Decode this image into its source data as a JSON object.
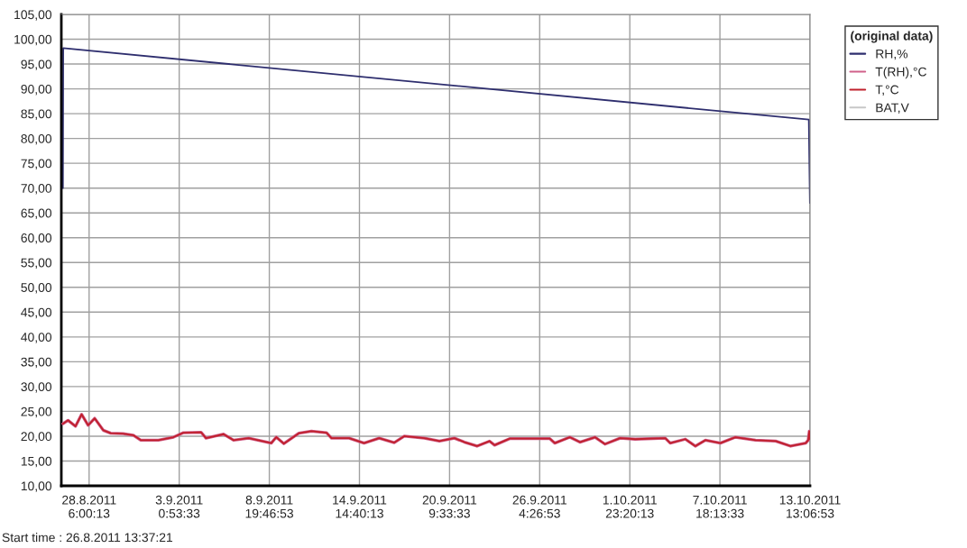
{
  "chart_data": {
    "type": "line",
    "legend_title": "(original data)",
    "x": [
      "2011-08-26T13:37",
      "2011-08-26T21:32",
      "2011-08-27T09:03",
      "2011-08-27T18:25",
      "2011-08-28T04:30",
      "2011-08-28T14:35",
      "2011-08-29T03:47",
      "2011-08-29T15:18",
      "2011-08-30T10:30",
      "2011-08-31T02:06",
      "2011-08-31T13:37",
      "2011-09-01T16:44",
      "2011-09-02T16:01",
      "2011-09-03T07:23",
      "2011-09-04T10:30",
      "2011-09-04T18:11",
      "2011-09-05T21:18",
      "2011-09-06T12:39",
      "2011-09-07T11:56",
      "2011-09-08T22:44",
      "2011-09-09T06:25",
      "2011-09-09T18:11",
      "2011-09-10T17:13",
      "2011-09-11T12:39",
      "2011-09-12T11:56",
      "2011-09-12T19:37",
      "2011-09-13T22:44",
      "2011-09-14T21:47",
      "2011-09-15T21:03",
      "2011-09-16T20:20",
      "2011-09-17T11:42",
      "2011-09-18T18:39",
      "2011-09-19T17:56",
      "2011-09-20T16:59",
      "2011-09-21T08:35",
      "2011-09-22T03:47",
      "2011-09-22T23:13",
      "2011-09-23T06:54",
      "2011-09-24T06:11",
      "2011-09-26T20:06",
      "2011-09-27T03:47",
      "2011-09-28T02:49",
      "2011-09-28T18:25",
      "2011-09-29T17:42",
      "2011-09-30T09:03",
      "2011-10-01T08:20",
      "2011-10-02T07:37",
      "2011-10-04T05:56",
      "2011-10-04T13:37",
      "2011-10-05T12:54",
      "2011-10-06T04:15",
      "2011-10-06T19:51",
      "2011-10-07T18:54",
      "2011-10-08T18:11",
      "2011-10-10T01:08",
      "2011-10-11T08:06",
      "2011-10-12T07:08",
      "2011-10-13T06:25",
      "2011-10-13T10:15",
      "2011-10-13T11:56",
      "2011-10-13T12:54"
    ],
    "series": [
      {
        "name": "RH,%",
        "color": "#2e2e6e",
        "x": [
          "2011-08-26T13:37",
          "2011-08-26T14:06",
          "2011-10-13T11:13",
          "2011-10-13T12:54"
        ],
        "values": [
          70,
          98.2,
          83.8,
          67
        ]
      },
      {
        "name": "T(RH),°C",
        "color": "#d0608a",
        "values": [
          22.5,
          23.2,
          22.0,
          24.4,
          22.2,
          23.6,
          21.2,
          20.6,
          20.5,
          20.2,
          19.2,
          19.2,
          19.8,
          20.7,
          20.8,
          19.6,
          20.4,
          19.2,
          19.6,
          18.6,
          19.8,
          18.5,
          20.6,
          21.0,
          20.7,
          19.6,
          19.6,
          18.6,
          19.6,
          18.7,
          20.0,
          19.6,
          19.0,
          19.6,
          18.8,
          18.0,
          19.0,
          18.2,
          19.5,
          19.5,
          18.6,
          19.8,
          18.8,
          19.8,
          18.4,
          19.6,
          19.4,
          19.6,
          18.6,
          19.4,
          18.0,
          19.2,
          18.6,
          19.8,
          19.2,
          19.0,
          18.0,
          18.6,
          19.2,
          21.0,
          19.4
        ]
      },
      {
        "name": "T,°C",
        "color": "#c0202c",
        "values": [
          22.5,
          23.2,
          22.0,
          24.4,
          22.2,
          23.6,
          21.2,
          20.6,
          20.5,
          20.2,
          19.2,
          19.2,
          19.8,
          20.7,
          20.8,
          19.6,
          20.4,
          19.2,
          19.6,
          18.6,
          19.8,
          18.5,
          20.6,
          21.0,
          20.7,
          19.6,
          19.6,
          18.6,
          19.6,
          18.7,
          20.0,
          19.6,
          19.0,
          19.6,
          18.8,
          18.0,
          19.0,
          18.2,
          19.5,
          19.5,
          18.6,
          19.8,
          18.8,
          19.8,
          18.4,
          19.6,
          19.4,
          19.6,
          18.6,
          19.4,
          18.0,
          19.2,
          18.6,
          19.8,
          19.2,
          19.0,
          18.0,
          18.6,
          19.2,
          21.0,
          19.4
        ]
      },
      {
        "name": "BAT,V",
        "color": "#c8c8c8",
        "values": [
          null,
          null,
          null,
          null,
          null,
          null,
          null,
          null,
          null,
          null,
          null,
          null,
          null,
          null,
          null,
          null,
          null,
          null,
          null,
          null,
          null,
          null,
          null,
          null,
          null,
          null,
          null,
          null,
          null,
          null,
          null,
          null,
          null,
          null,
          null,
          null,
          null,
          null,
          null,
          null,
          null,
          null,
          null,
          null,
          null,
          null,
          null,
          null,
          null,
          null,
          null,
          null,
          null,
          null,
          null,
          null,
          null,
          null,
          null,
          null,
          null
        ]
      }
    ],
    "xlim": [
      "2011-08-26T11:13",
      "2011-10-13T13:06"
    ],
    "xticks": [
      {
        "value": "2011-08-28T06:00",
        "label": "28.8.2011\n6:00:13"
      },
      {
        "value": "2011-09-03T00:53",
        "label": "3.9.2011\n0:53:33"
      },
      {
        "value": "2011-09-08T19:46",
        "label": "8.9.2011\n19:46:53"
      },
      {
        "value": "2011-09-14T14:40",
        "label": "14.9.2011\n14:40:13"
      },
      {
        "value": "2011-09-20T09:33",
        "label": "20.9.2011\n9:33:33"
      },
      {
        "value": "2011-09-26T04:26",
        "label": "26.9.2011\n4:26:53"
      },
      {
        "value": "2011-10-01T23:20",
        "label": "1.10.2011\n23:20:13"
      },
      {
        "value": "2011-10-07T18:13",
        "label": "7.10.2011\n18:13:33"
      },
      {
        "value": "2011-10-13T13:06",
        "label": "13.10.2011\n13:06:53"
      }
    ],
    "ylim": [
      10,
      105
    ],
    "yticks": [
      {
        "value": 10,
        "label": "10,00"
      },
      {
        "value": 15,
        "label": "15,00"
      },
      {
        "value": 20,
        "label": "20,00"
      },
      {
        "value": 25,
        "label": "25,00"
      },
      {
        "value": 30,
        "label": "30,00"
      },
      {
        "value": 35,
        "label": "35,00"
      },
      {
        "value": 40,
        "label": "40,00"
      },
      {
        "value": 45,
        "label": "45,00"
      },
      {
        "value": 50,
        "label": "50,00"
      },
      {
        "value": 55,
        "label": "55,00"
      },
      {
        "value": 60,
        "label": "60,00"
      },
      {
        "value": 65,
        "label": "65,00"
      },
      {
        "value": 70,
        "label": "70,00"
      },
      {
        "value": 75,
        "label": "75,00"
      },
      {
        "value": 80,
        "label": "80,00"
      },
      {
        "value": 85,
        "label": "85,00"
      },
      {
        "value": 90,
        "label": "90,00"
      },
      {
        "value": 95,
        "label": "95,00"
      },
      {
        "value": 100,
        "label": "100,00"
      },
      {
        "value": 105,
        "label": "105,00"
      }
    ],
    "grid": true,
    "legend": "top right",
    "annotations": [
      "Start time : 26.8.2011 13:37:21"
    ]
  }
}
